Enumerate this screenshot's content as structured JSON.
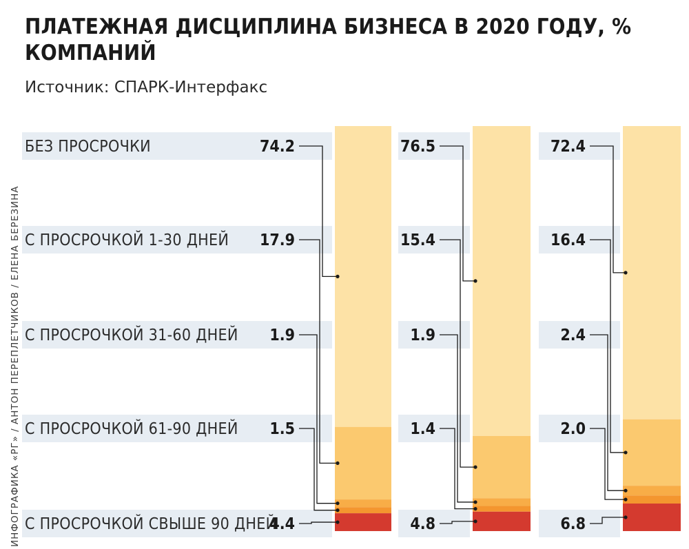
{
  "title": "ПЛАТЕЖНАЯ ДИСЦИПЛИНА БИЗНЕСА В 2020 ГОДУ, % КОМПАНИЙ",
  "subtitle": "Источник: СПАРК-Интерфакс",
  "credit": "ИНФОГРАФИКА «РГ» / АНТОН ПЕРЕПЛЕТЧИКОВ / ЕЛЕНА БЕРЕЗИНА",
  "chart_data": {
    "type": "bar",
    "stacked": true,
    "orientation": "vertical",
    "categories": [
      "БЕЗ ПРОСРОЧКИ",
      "С ПРОСРОЧКОЙ 1-30 ДНЕЙ",
      "С ПРОСРОЧКОЙ 31-60 ДНЕЙ",
      "С ПРОСРОЧКОЙ 61-90 ДНЕЙ",
      "С ПРОСРОЧКОЙ СВЫШЕ 90 ДНЕЙ"
    ],
    "columns": [
      {
        "values": [
          74.2,
          17.9,
          1.9,
          1.5,
          4.4
        ],
        "value_labels": [
          "74.2",
          "17.9",
          "1.9",
          "1.5",
          "4.4"
        ]
      },
      {
        "values": [
          76.5,
          15.4,
          1.9,
          1.4,
          4.8
        ],
        "value_labels": [
          "76.5",
          "15.4",
          "1.9",
          "1.4",
          "4.8"
        ]
      },
      {
        "values": [
          72.4,
          16.4,
          2.4,
          2.0,
          6.8
        ],
        "value_labels": [
          "72.4",
          "16.4",
          "2.4",
          "2.0",
          "6.8"
        ]
      }
    ],
    "colors": [
      "#fde2a6",
      "#fbc96f",
      "#f8ad47",
      "#f4962f",
      "#d43a2f"
    ],
    "band_color": "#e7edf3",
    "leader_color": "#1a1a1a",
    "ylim": [
      0,
      100
    ]
  }
}
